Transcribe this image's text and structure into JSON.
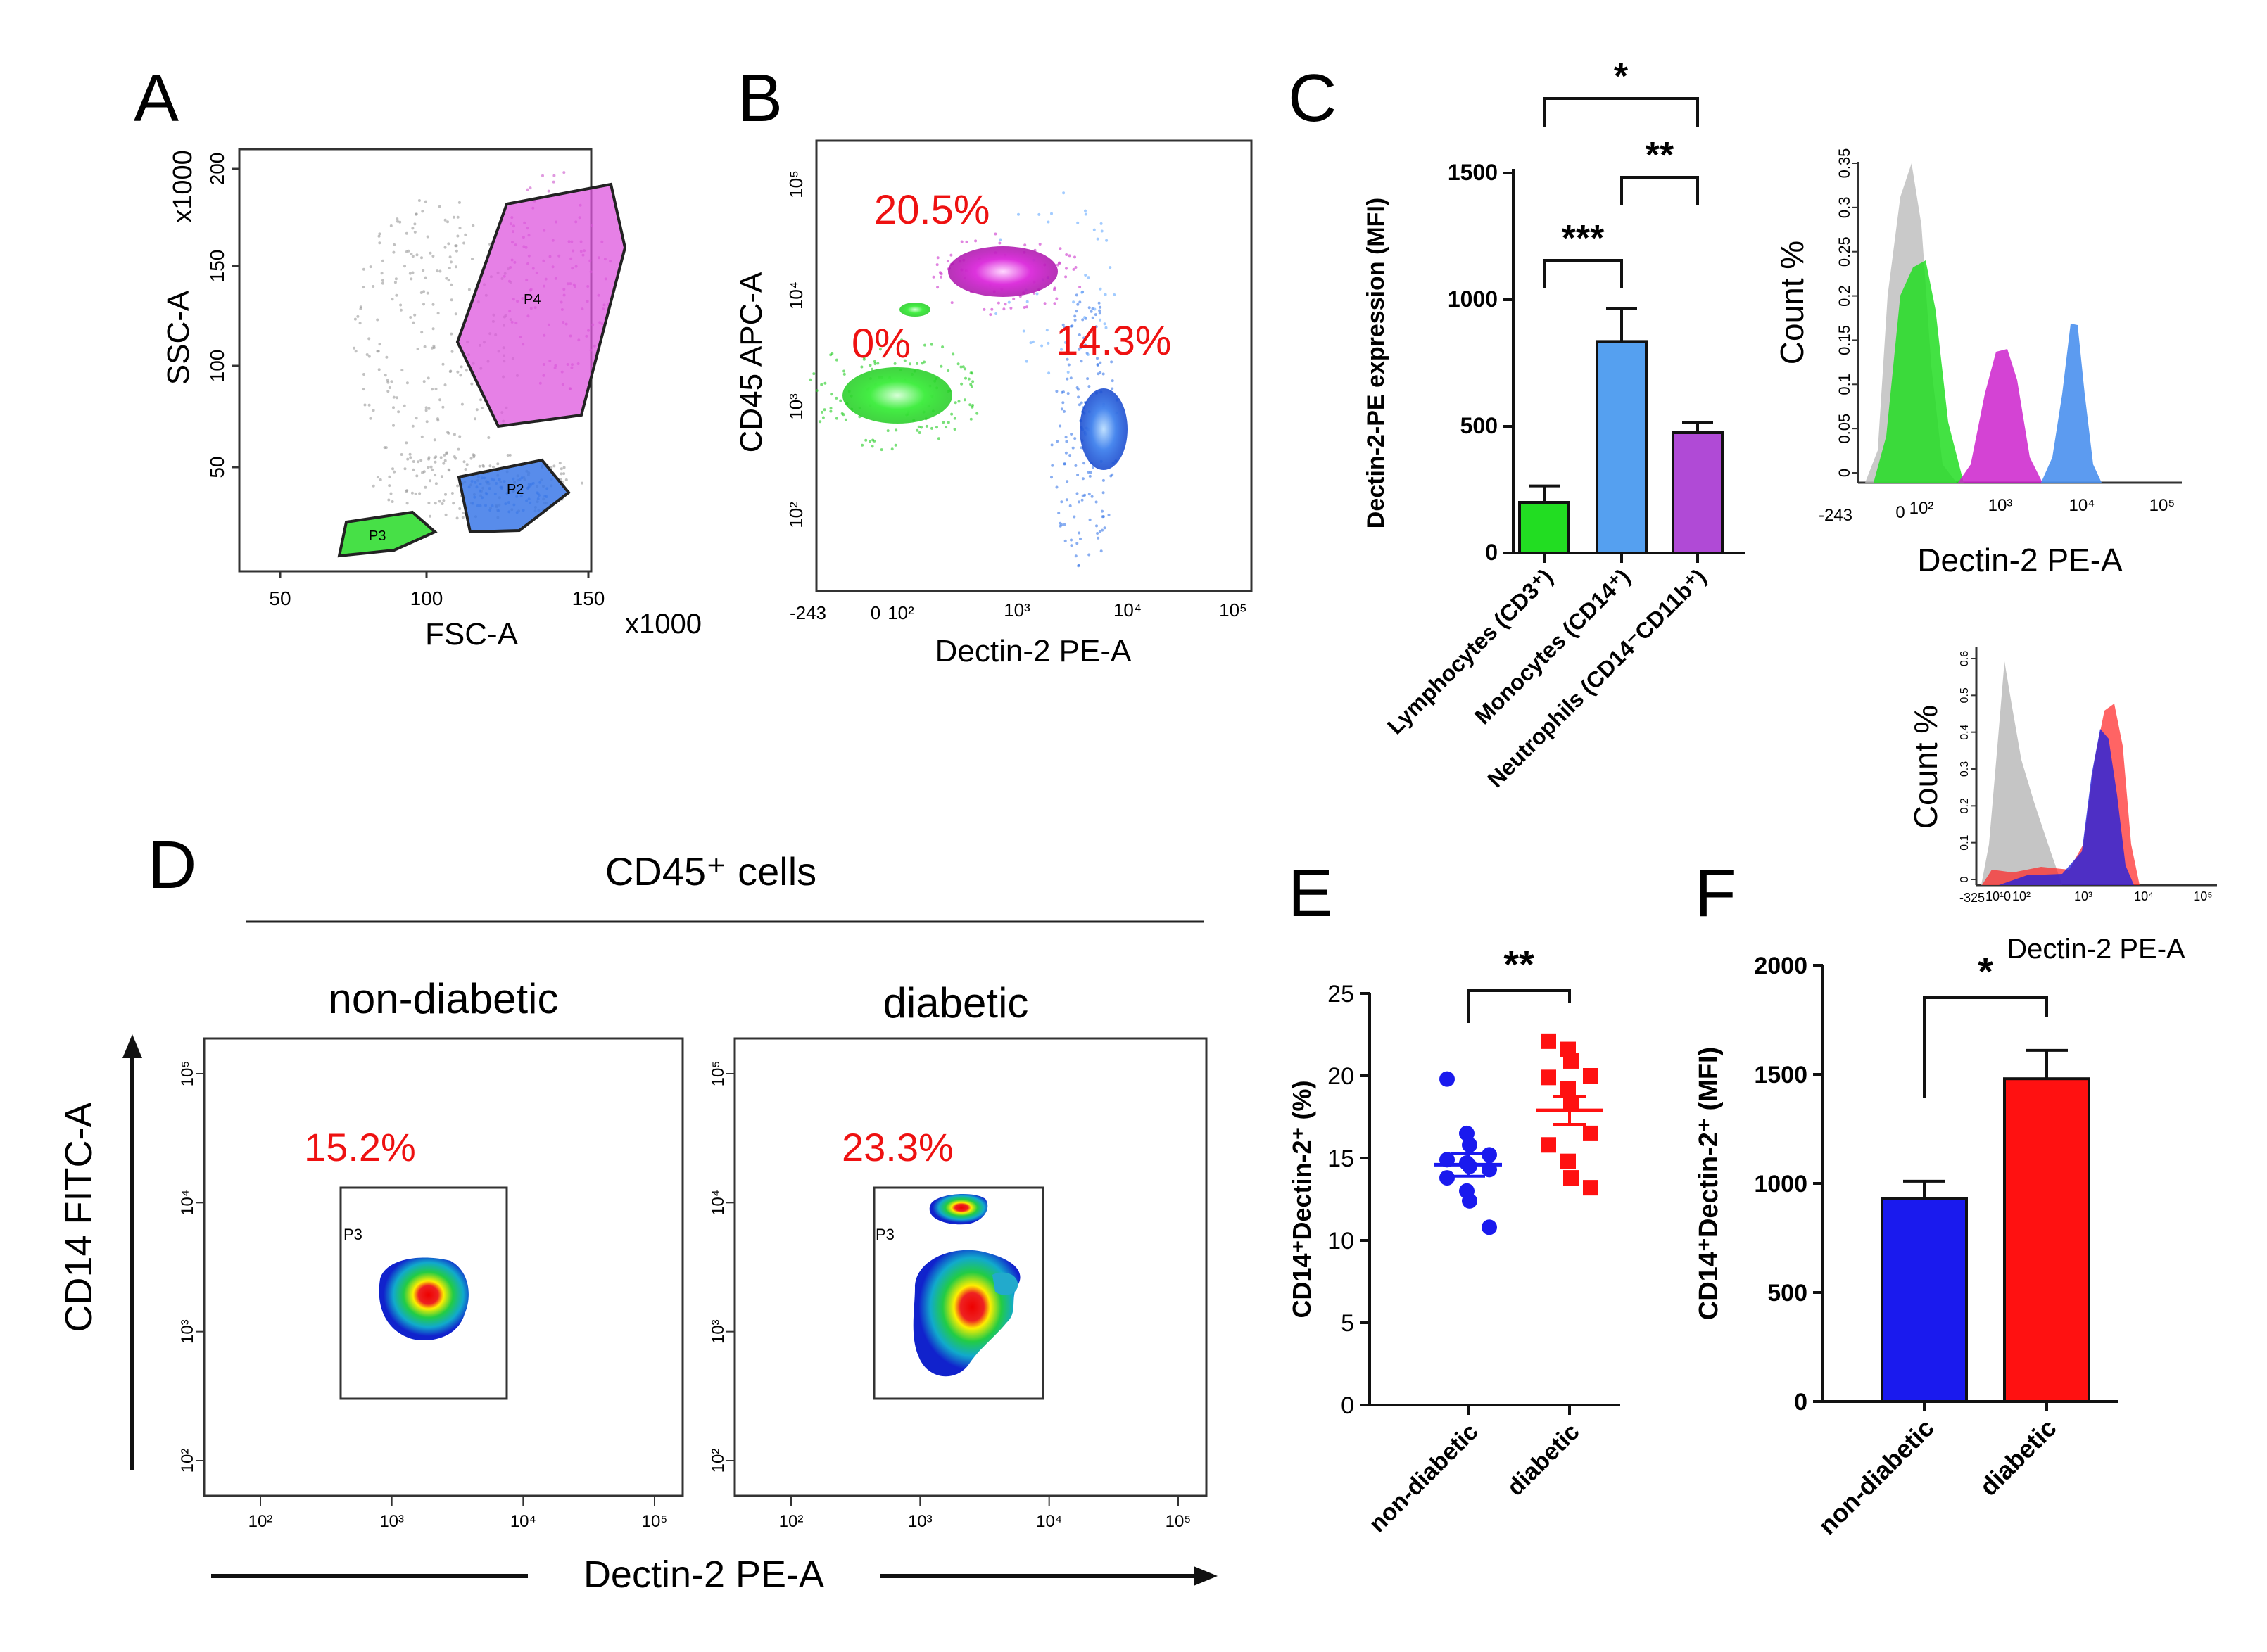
{
  "colors": {
    "green": "#22dd22",
    "blue": "#2266ee",
    "magenta": "#cc22cc",
    "purple": "#b04ad6",
    "lightblue": "#55a0f0",
    "red": "#ff1111",
    "navy": "#1a1aee",
    "gray": "#bbbbbb",
    "pct_red": "#ee1111"
  },
  "panels": {
    "A": "A",
    "B": "B",
    "C": "C",
    "D": "D",
    "E": "E",
    "F": "F"
  },
  "panelA": {
    "x_label": "FSC-A",
    "y_label": "SSC-A",
    "x_mult": "x1000",
    "y_mult": "x1000",
    "x_ticks": [
      "50",
      "100",
      "150"
    ],
    "y_ticks": [
      "50",
      "100",
      "150",
      "200"
    ],
    "gates": [
      "P4",
      "P2",
      "P3"
    ]
  },
  "panelB": {
    "x_label": "Dectin-2 PE-A",
    "y_label": "CD45 APC-A",
    "pcts": [
      "20.5%",
      "0%",
      "14.3%"
    ],
    "x_ticks": [
      "-243",
      "0",
      "10²",
      "10³",
      "10⁴",
      "10⁵"
    ],
    "y_ticks": [
      "10⁵",
      "10⁴",
      "10³",
      "10²"
    ]
  },
  "panelD": {
    "header": "CD45⁺ cells",
    "y_label": "CD14 FITC-A",
    "x_label": "Dectin-2 PE-A",
    "gate": "P3",
    "plots": [
      {
        "title": "non-diabetic",
        "pct": "15.2%"
      },
      {
        "title": "diabetic",
        "pct": "23.3%"
      }
    ],
    "x_ticks": [
      "10²",
      "10³",
      "10⁴",
      "10⁵"
    ],
    "y_ticks": [
      "10⁵",
      "10⁴",
      "10³",
      "10²"
    ]
  },
  "hist_top": {
    "x_label": "Dectin-2 PE-A",
    "y_label": "Count %",
    "x_ticks": [
      "-243",
      "0",
      "10²",
      "10³",
      "10⁴",
      "10⁵"
    ],
    "y_ticks": [
      "0",
      "0.05",
      "0.1",
      "0.15",
      "0.2",
      "0.25",
      "0.3",
      "0.35"
    ]
  },
  "hist_bottom": {
    "x_label": "Dectin-2 PE-A",
    "y_label": "Count %",
    "x_ticks": [
      "-325",
      "10¹",
      "0",
      "10²",
      "10³",
      "10⁴",
      "10⁵"
    ],
    "y_ticks": [
      "0",
      "0.1",
      "0.2",
      "0.3",
      "0.4",
      "0.5",
      "0.6"
    ]
  },
  "chart_data": [
    {
      "id": "C",
      "type": "bar",
      "title": "",
      "ylabel": "Dectin-2-PE expression (MFI)",
      "xlabel": "",
      "categories": [
        "Lymphocytes (CD3⁺)",
        "Monocytes (CD14⁺)",
        "Neutrophils (CD14⁻CD11b⁺)"
      ],
      "values": [
        200,
        835,
        475
      ],
      "errors": [
        65,
        130,
        40
      ],
      "ylim": [
        0,
        1500
      ],
      "yticks": [
        0,
        500,
        1000,
        1500
      ],
      "significance": [
        {
          "from": 0,
          "to": 2,
          "label": "*"
        },
        {
          "from": 1,
          "to": 2,
          "label": "**"
        },
        {
          "from": 0,
          "to": 1,
          "label": "***"
        }
      ]
    },
    {
      "id": "E",
      "type": "scatter",
      "title": "",
      "ylabel": "CD14⁺Dectin-2⁺ (%)",
      "xlabel": "",
      "categories": [
        "non-diabetic",
        "diabetic"
      ],
      "groups": [
        {
          "name": "non-diabetic",
          "mean": 14.6,
          "sem": 0.7,
          "values": [
            19.8,
            16.5,
            15.8,
            15.2,
            14.9,
            14.7,
            14.5,
            14.3,
            13.8,
            13.0,
            12.4,
            10.8
          ]
        },
        {
          "name": "diabetic",
          "mean": 17.9,
          "sem": 0.85,
          "values": [
            22.1,
            21.6,
            20.9,
            20.0,
            19.9,
            19.2,
            18.3,
            16.5,
            15.8,
            14.8,
            13.8,
            13.2
          ]
        }
      ],
      "ylim": [
        0,
        25
      ],
      "yticks": [
        0,
        5,
        10,
        15,
        20,
        25
      ],
      "significance": [
        {
          "from": 0,
          "to": 1,
          "label": "**"
        }
      ]
    },
    {
      "id": "F",
      "type": "bar",
      "title": "",
      "ylabel": "CD14⁺Dectin-2⁺ (MFI)",
      "xlabel": "",
      "categories": [
        "non-diabetic",
        "diabetic"
      ],
      "values": [
        930,
        1480
      ],
      "errors": [
        80,
        130
      ],
      "ylim": [
        0,
        2000
      ],
      "yticks": [
        0,
        500,
        1000,
        1500,
        2000
      ],
      "significance": [
        {
          "from": 0,
          "to": 1,
          "label": "*"
        }
      ]
    }
  ]
}
